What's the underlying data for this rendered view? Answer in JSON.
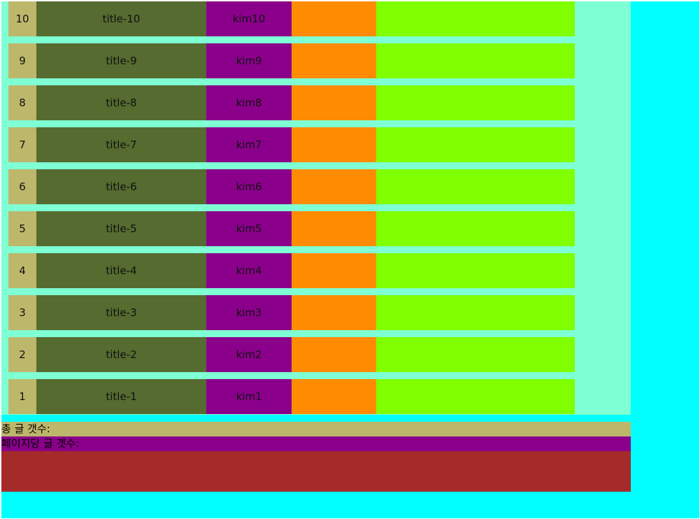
{
  "posts": [
    {
      "num": "10",
      "title": "title-10",
      "author": "kim10"
    },
    {
      "num": "9",
      "title": "title-9",
      "author": "kim9"
    },
    {
      "num": "8",
      "title": "title-8",
      "author": "kim8"
    },
    {
      "num": "7",
      "title": "title-7",
      "author": "kim7"
    },
    {
      "num": "6",
      "title": "title-6",
      "author": "kim6"
    },
    {
      "num": "5",
      "title": "title-5",
      "author": "kim5"
    },
    {
      "num": "4",
      "title": "title-4",
      "author": "kim4"
    },
    {
      "num": "3",
      "title": "title-3",
      "author": "kim3"
    },
    {
      "num": "2",
      "title": "title-2",
      "author": "kim2"
    },
    {
      "num": "1",
      "title": "title-1",
      "author": "kim1"
    }
  ],
  "info": {
    "total_label": "총 글 갯수:",
    "per_page_label": "페이지당 글 갯수:"
  },
  "colors": {
    "page_bg": "#00ffff",
    "board_bg": "#7fffd4",
    "num_cell": "#bdb76b",
    "title_cell": "#556b2f",
    "author_cell": "#8b008b",
    "col4_cell": "#ff8c00",
    "col5_cell": "#7fff00",
    "pager_box": "#a52a2a"
  }
}
